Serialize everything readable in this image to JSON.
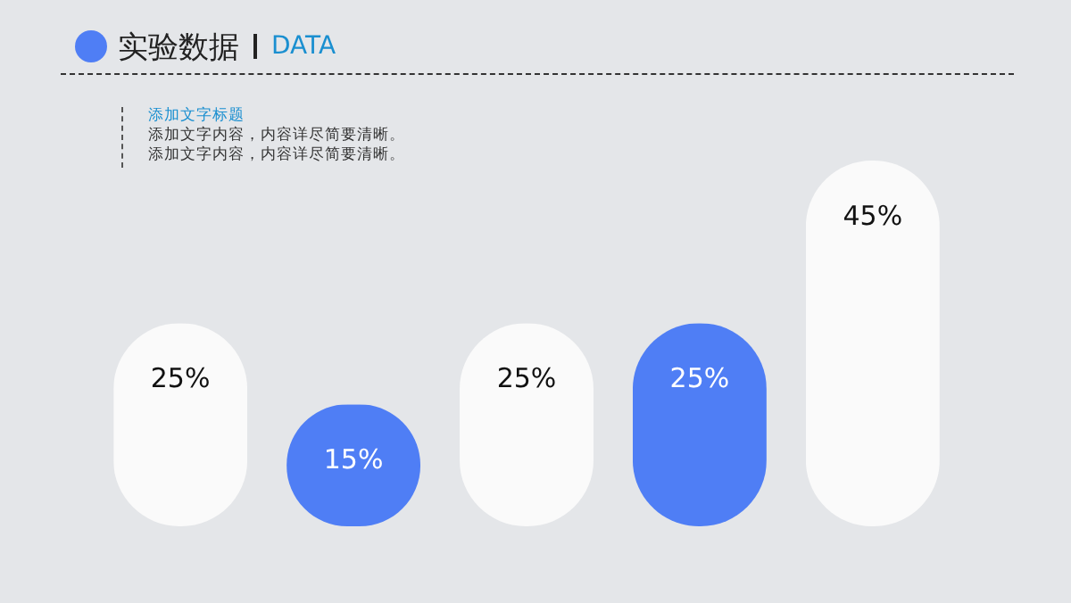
{
  "chart_data": {
    "type": "bar",
    "title": "实验数据",
    "subtitle": "DATA",
    "annotations": [
      "添加文字标题",
      "添加文字内容，内容详尽简要清晰。",
      "添加文字内容，内容详尽简要清晰。"
    ],
    "categories": [
      null,
      null,
      null,
      null,
      null
    ],
    "values": [
      25,
      15,
      25,
      25,
      45
    ],
    "value_labels": [
      "25%",
      "15%",
      "25%",
      "25%",
      "45%"
    ],
    "colors": [
      "#fafafa",
      "#4f7ef5",
      "#fafafa",
      "#4f7ef5",
      "#fafafa"
    ]
  }
}
